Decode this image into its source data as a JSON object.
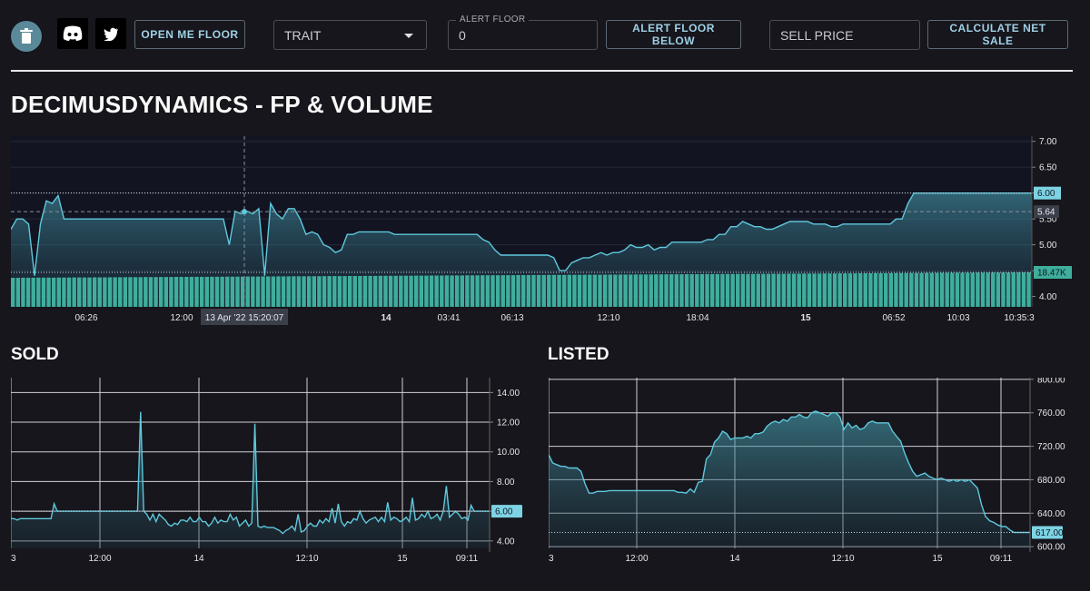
{
  "toolbar": {
    "open_me_floor": "OPEN ME FLOOR",
    "trait_select": "TRAIT",
    "alert_floor_label": "ALERT FLOOR",
    "alert_floor_value": "0",
    "alert_floor_below": "ALERT FLOOR BELOW",
    "sell_price_placeholder": "SELL PRICE",
    "calculate_net_sale": "CALCULATE NET SALE",
    "icons": [
      "trash-icon",
      "discord-icon",
      "twitter-icon"
    ]
  },
  "title": "DECIMUSDYNAMICS - FP & VOLUME",
  "colors": {
    "line": "#5fc8dc",
    "volume": "#3fae9c",
    "background": "#16161c",
    "plot_bg": "#121422"
  },
  "chart_data": [
    {
      "id": "fp",
      "type": "area",
      "title": "DECIMUSDYNAMICS - FP & VOLUME",
      "x_ticks": [
        "06:26",
        "12:00",
        "14",
        "03:41",
        "06:13",
        "12:10",
        "18:04",
        "15",
        "06:52",
        "10:03",
        "10:35:3"
      ],
      "y_ticks": [
        "7.00",
        "6.50",
        "6.00",
        "5.50",
        "5.00",
        "4.50",
        "4.00"
      ],
      "ylim": [
        3.8,
        7.1
      ],
      "series": [
        {
          "values": [
            5.3,
            5.5,
            5.5,
            5.4,
            4.4,
            5.4,
            5.85,
            5.8,
            5.95,
            5.5,
            5.5,
            5.5,
            5.5,
            5.5,
            5.5,
            5.5,
            5.5,
            5.5,
            5.5,
            5.5,
            5.5,
            5.5,
            5.5,
            5.5,
            5.5,
            5.5,
            5.5,
            5.5,
            5.5,
            5.5,
            5.5,
            5.5,
            5.5,
            5.5,
            5.5,
            5.5,
            5.5,
            5.0,
            5.65,
            5.6,
            5.65,
            5.6,
            5.7,
            4.4,
            5.8,
            5.6,
            5.5,
            5.7,
            5.7,
            5.5,
            5.2,
            5.25,
            5.2,
            5.0,
            4.95,
            4.85,
            4.9,
            5.2,
            5.2,
            5.25,
            5.25,
            5.25,
            5.25,
            5.25,
            5.25,
            5.2,
            5.2,
            5.2,
            5.2,
            5.2,
            5.2,
            5.2,
            5.2,
            5.2,
            5.2,
            5.2,
            5.2,
            5.2,
            5.2,
            5.2,
            5.1,
            5.05,
            4.9,
            4.8,
            4.8,
            4.8,
            4.8,
            4.8,
            4.8,
            4.8,
            4.8,
            4.8,
            4.75,
            4.5,
            4.5,
            4.65,
            4.7,
            4.75,
            4.75,
            4.8,
            4.85,
            4.8,
            4.85,
            4.85,
            4.9,
            5.0,
            4.95,
            4.95,
            5.0,
            4.9,
            4.95,
            4.95,
            5.05,
            5.05,
            5.05,
            5.05,
            5.05,
            5.05,
            5.1,
            5.1,
            5.2,
            5.2,
            5.35,
            5.35,
            5.45,
            5.4,
            5.35,
            5.35,
            5.3,
            5.3,
            5.35,
            5.4,
            5.45,
            5.45,
            5.45,
            5.45,
            5.4,
            5.4,
            5.4,
            5.35,
            5.35,
            5.4,
            5.4,
            5.4,
            5.4,
            5.4,
            5.4,
            5.4,
            5.4,
            5.4,
            5.5,
            5.5,
            5.8,
            6.0,
            6.0,
            6.0,
            6.0,
            6.0,
            6.0,
            6.0,
            6.0,
            6.0,
            6.0,
            6.0,
            6.0,
            6.0,
            6.0,
            6.0,
            6.0,
            6.0,
            6.0,
            6.0,
            6.0,
            6.0
          ]
        }
      ],
      "volume": {
        "label": "18.47K",
        "level": 0.7
      },
      "markers": {
        "last": "6.00",
        "crosshair": "5.64"
      },
      "crosshair_time": "13 Apr '22   15:20:07"
    },
    {
      "id": "sold",
      "type": "area",
      "title": "SOLD",
      "x_ticks": [
        "3",
        "12:00",
        "14",
        "12:10",
        "15",
        "09:11"
      ],
      "y_ticks": [
        "14.00",
        "12.00",
        "10.00",
        "8.00",
        "6.00",
        "4.00"
      ],
      "ylim": [
        3.5,
        15
      ],
      "marker": "6.00",
      "series": [
        {
          "values": [
            5.5,
            5.5,
            5.4,
            5.5,
            5.5,
            5.5,
            5.5,
            5.5,
            5.5,
            5.5,
            5.5,
            5.5,
            5.5,
            5.5,
            6.5,
            6.0,
            6.0,
            6.0,
            6.0,
            6.0,
            6.0,
            6.0,
            6.0,
            6.0,
            6.0,
            6.0,
            6.0,
            6.0,
            6.0,
            6.0,
            6.0,
            6.0,
            6.0,
            6.0,
            6.0,
            6.0,
            6.0,
            6.0,
            6.0,
            6.0,
            6.0,
            6.0,
            12.7,
            6.0,
            5.8,
            5.4,
            5.8,
            5.3,
            5.8,
            5.6,
            5.4,
            5.1,
            5.0,
            5.2,
            5.1,
            5.4,
            5.4,
            5.3,
            5.6,
            5.3,
            5.3,
            5.6,
            5.3,
            5.3,
            5.0,
            5.2,
            5.6,
            5.2,
            5.4,
            5.3,
            5.3,
            5.8,
            5.4,
            5.6,
            5.0,
            5.2,
            5.4,
            5.0,
            5.2,
            11.9,
            5.0,
            4.9,
            5.0,
            4.9,
            4.9,
            4.9,
            4.8,
            4.7,
            4.5,
            4.7,
            4.8,
            5.0,
            4.7,
            5.8,
            4.6,
            4.7,
            5.0,
            5.2,
            5.0,
            5.0,
            5.4,
            5.2,
            5.5,
            5.3,
            6.2,
            5.2,
            6.5,
            5.3,
            5.0,
            5.3,
            5.2,
            5.5,
            5.4,
            6.0,
            5.5,
            5.2,
            5.4,
            5.5,
            5.6,
            5.3,
            5.6,
            5.3,
            6.6,
            5.4,
            5.6,
            5.5,
            5.3,
            5.4,
            5.6,
            5.3,
            6.9,
            5.4,
            5.5,
            5.8,
            5.6,
            6.0,
            5.5,
            5.6,
            5.8,
            5.4,
            6.0,
            7.7,
            5.6,
            5.8,
            6.0,
            5.8,
            5.5,
            5.6,
            5.4,
            6.4,
            6.0,
            6.0,
            6.0,
            6.0,
            6.0,
            6.0
          ]
        }
      ]
    },
    {
      "id": "listed",
      "type": "area",
      "title": "LISTED",
      "x_ticks": [
        "3",
        "12:00",
        "14",
        "12:10",
        "15",
        "09:11"
      ],
      "y_ticks": [
        "800.00",
        "760.00",
        "720.00",
        "680.00",
        "640.00",
        "600.00"
      ],
      "ylim": [
        598,
        802
      ],
      "marker": "617.00",
      "series": [
        {
          "values": [
            710,
            700,
            698,
            696,
            696,
            694,
            694,
            694,
            690,
            675,
            664,
            664,
            666,
            666,
            666,
            667,
            667,
            667,
            667,
            667,
            667,
            667,
            667,
            667,
            667,
            667,
            667,
            667,
            667,
            667,
            667,
            667,
            665,
            665,
            664,
            669,
            665,
            677,
            678,
            705,
            710,
            725,
            730,
            738,
            735,
            728,
            730,
            730,
            730,
            732,
            730,
            735,
            735,
            737,
            744,
            748,
            750,
            748,
            752,
            750,
            755,
            755,
            758,
            755,
            754,
            760,
            762,
            760,
            758,
            756,
            760,
            760,
            755,
            740,
            748,
            742,
            745,
            740,
            742,
            748,
            750,
            748,
            748,
            748,
            748,
            738,
            732,
            726,
            712,
            700,
            690,
            684,
            686,
            688,
            684,
            682,
            680,
            682,
            680,
            678,
            680,
            678,
            680,
            678,
            680,
            675,
            670,
            650,
            636,
            631,
            629,
            626,
            624,
            624,
            620,
            617,
            617,
            617,
            617,
            617
          ]
        }
      ]
    }
  ]
}
